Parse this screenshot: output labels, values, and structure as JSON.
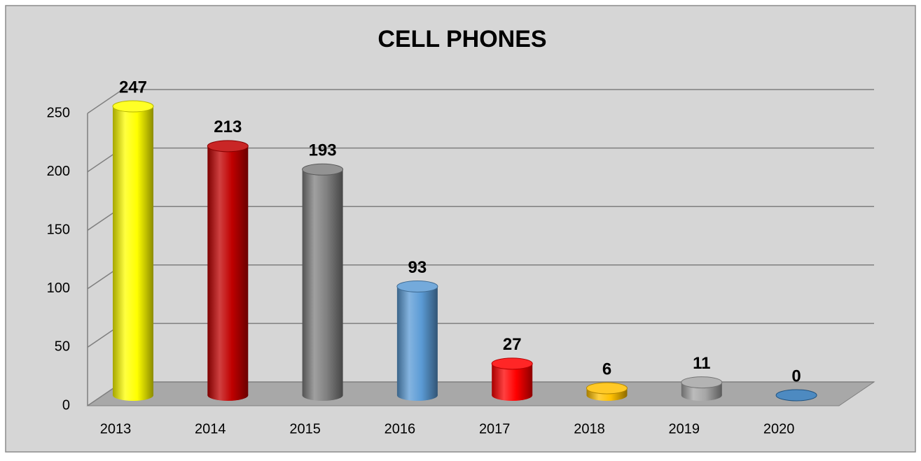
{
  "chart_data": {
    "type": "bar",
    "title": "CELL PHONES",
    "categories": [
      "2013",
      "2014",
      "2015",
      "2016",
      "2017",
      "2018",
      "2019",
      "2020"
    ],
    "values": [
      247,
      213,
      193,
      93,
      27,
      6,
      11,
      0
    ],
    "colors": [
      "#ffff00",
      "#c00000",
      "#808080",
      "#5b9bd5",
      "#ff0000",
      "#ffc000",
      "#a6a6a6",
      "#2e75b6"
    ],
    "ylim": [
      0,
      250
    ],
    "yticks": [
      0,
      50,
      100,
      150,
      200,
      250
    ],
    "grid": true
  }
}
